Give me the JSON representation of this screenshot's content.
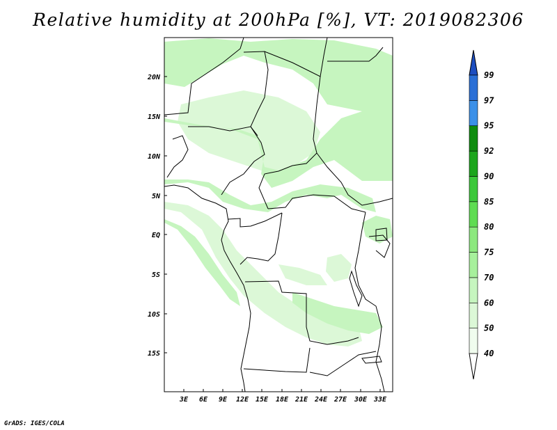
{
  "title": "Relative humidity at 200hPa [%], VT: 2019082306",
  "footer": "GrADS: IGES/COLA",
  "map": {
    "lat_labels": [
      "20N",
      "15N",
      "10N",
      "5N",
      "EQ",
      "5S",
      "10S",
      "15S"
    ],
    "lon_labels": [
      "3E",
      "6E",
      "9E",
      "12E",
      "15E",
      "18E",
      "21E",
      "24E",
      "27E",
      "30E",
      "33E"
    ]
  },
  "colorbar": {
    "labels": [
      "40",
      "50",
      "60",
      "70",
      "75",
      "80",
      "85",
      "90",
      "92",
      "95",
      "97",
      "99"
    ],
    "colors": [
      "#f0fcee",
      "#dcf8d7",
      "#c6f5bf",
      "#a7f09c",
      "#8ce87e",
      "#5fdc52",
      "#3cc83a",
      "#1ca51c",
      "#0f8c0f",
      "#3b90e8",
      "#2a6fd6",
      "#1d4ec0"
    ]
  }
}
